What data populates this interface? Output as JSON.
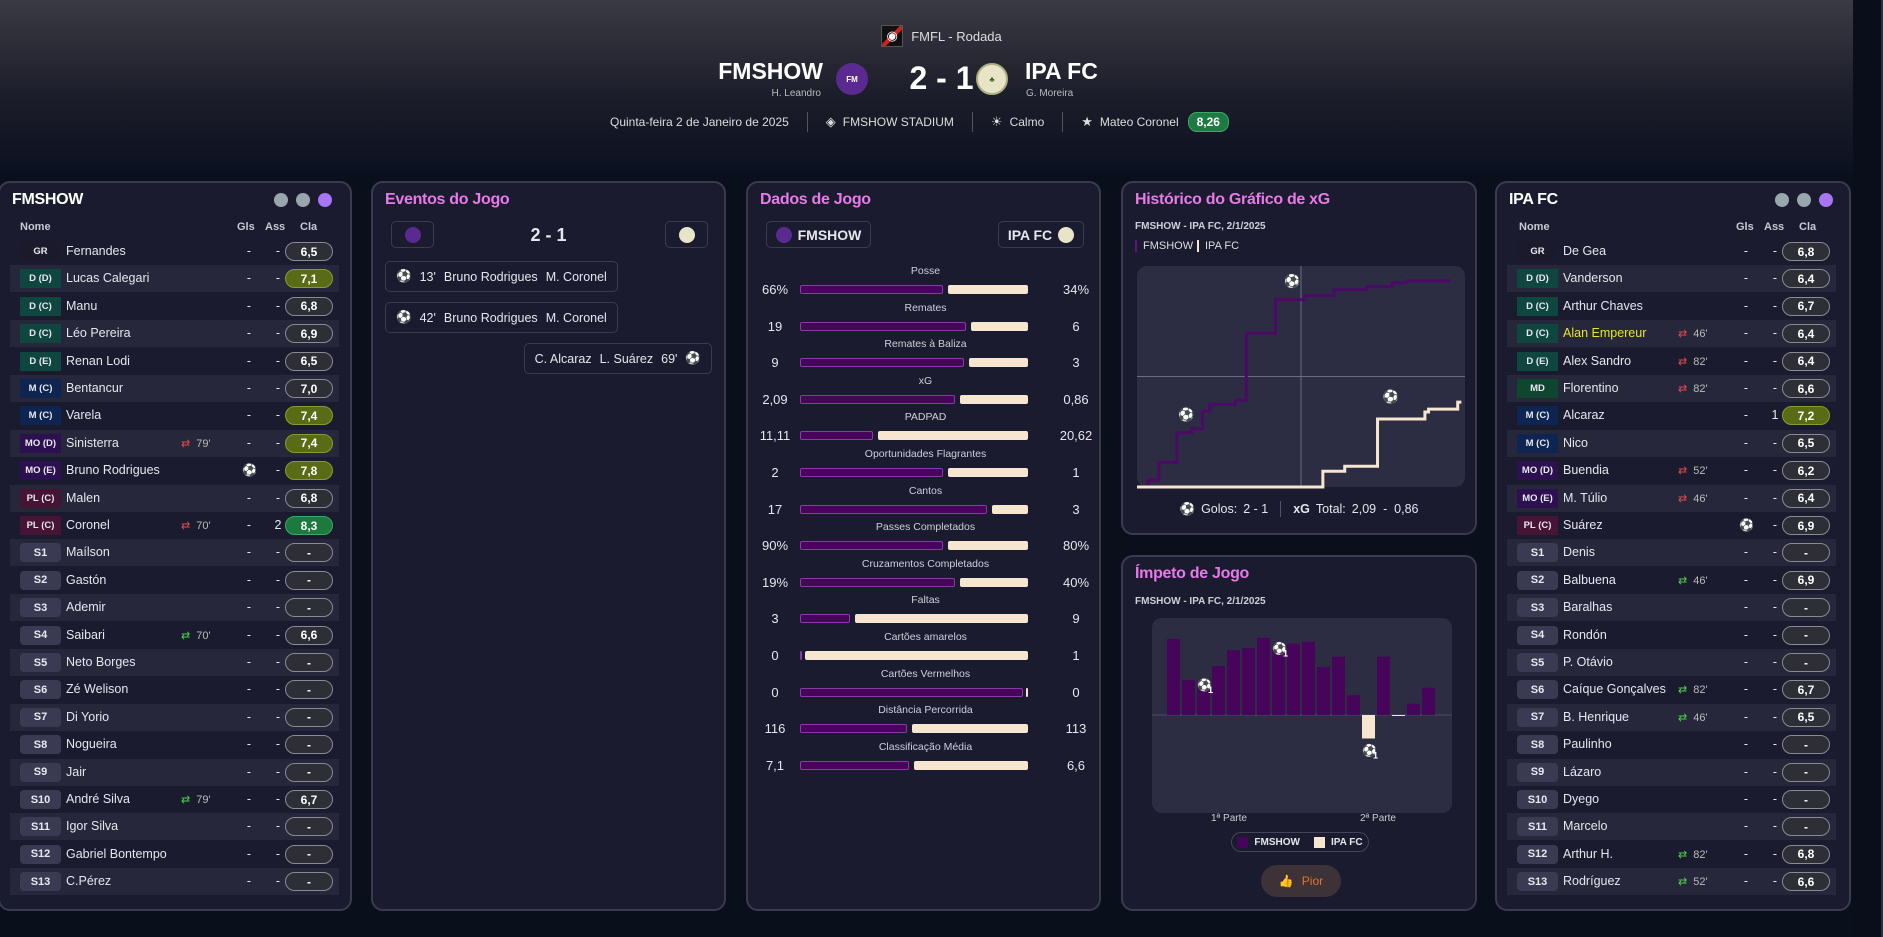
{
  "header": {
    "competition": "FMFL - Rodada",
    "home_team": "FMSHOW",
    "home_manager": "H. Leandro",
    "home_crest_text": "FM SHOW",
    "away_team": "IPA FC",
    "away_manager": "G. Moreira",
    "score": "2 - 1",
    "date": "Quinta-feira 2 de Janeiro de 2025",
    "stadium": "FMSHOW STADIUM",
    "weather": "Calmo",
    "player_of_match": "Mateo Coronel",
    "player_of_match_rating": "8,26"
  },
  "colors": {
    "home": "#46045a",
    "away": "#f7e6cf",
    "accent_title": "#e87ae8"
  },
  "home_lineup": {
    "title": "FMSHOW",
    "headers": {
      "name": "Nome",
      "gls": "Gls",
      "ass": "Ass",
      "cla": "Cla"
    },
    "players": [
      {
        "pos": "GR",
        "name": "Fernandes",
        "gls": "-",
        "ass": "-",
        "rating": "6,5",
        "tier": ""
      },
      {
        "pos": "D (D)",
        "name": "Lucas Calegari",
        "gls": "-",
        "ass": "-",
        "rating": "7,1",
        "tier": "good"
      },
      {
        "pos": "D (C)",
        "name": "Manu",
        "gls": "-",
        "ass": "-",
        "rating": "6,8",
        "tier": ""
      },
      {
        "pos": "D (C)",
        "name": "Léo Pereira",
        "gls": "-",
        "ass": "-",
        "rating": "6,9",
        "tier": ""
      },
      {
        "pos": "D (E)",
        "name": "Renan Lodi",
        "gls": "-",
        "ass": "-",
        "rating": "6,5",
        "tier": ""
      },
      {
        "pos": "M (C)",
        "name": "Bentancur",
        "gls": "-",
        "ass": "-",
        "rating": "7,0",
        "tier": ""
      },
      {
        "pos": "M (C)",
        "name": "Varela",
        "gls": "-",
        "ass": "-",
        "rating": "7,4",
        "tier": "good"
      },
      {
        "pos": "MO (D)",
        "name": "Sinisterra",
        "sub": "79'",
        "sub_dir": "off",
        "gls": "-",
        "ass": "-",
        "rating": "7,4",
        "tier": "good"
      },
      {
        "pos": "MO (E)",
        "name": "Bruno Rodrigues",
        "goals_icon": "2",
        "ass": "-",
        "rating": "7,8",
        "tier": "good"
      },
      {
        "pos": "PL (C)",
        "name": "Malen",
        "gls": "-",
        "ass": "-",
        "rating": "6,8",
        "tier": ""
      },
      {
        "pos": "PL (C)",
        "name": "Coronel",
        "sub": "70'",
        "sub_dir": "off",
        "gls": "-",
        "ass": "2",
        "rating": "8,3",
        "tier": "great"
      },
      {
        "pos": "S1",
        "name": "Maílson",
        "gls": "-",
        "ass": "-",
        "rating": "-",
        "tier": ""
      },
      {
        "pos": "S2",
        "name": "Gastón",
        "gls": "-",
        "ass": "-",
        "rating": "-",
        "tier": ""
      },
      {
        "pos": "S3",
        "name": "Ademir",
        "gls": "-",
        "ass": "-",
        "rating": "-",
        "tier": ""
      },
      {
        "pos": "S4",
        "name": "Saibari",
        "sub": "70'",
        "sub_dir": "on",
        "gls": "-",
        "ass": "-",
        "rating": "6,6",
        "tier": ""
      },
      {
        "pos": "S5",
        "name": "Neto Borges",
        "gls": "-",
        "ass": "-",
        "rating": "-",
        "tier": ""
      },
      {
        "pos": "S6",
        "name": "Zé Welison",
        "gls": "-",
        "ass": "-",
        "rating": "-",
        "tier": ""
      },
      {
        "pos": "S7",
        "name": "Di Yorio",
        "gls": "-",
        "ass": "-",
        "rating": "-",
        "tier": ""
      },
      {
        "pos": "S8",
        "name": "Nogueira",
        "gls": "-",
        "ass": "-",
        "rating": "-",
        "tier": ""
      },
      {
        "pos": "S9",
        "name": "Jair",
        "gls": "-",
        "ass": "-",
        "rating": "-",
        "tier": ""
      },
      {
        "pos": "S10",
        "name": "André Silva",
        "sub": "79'",
        "sub_dir": "on",
        "gls": "-",
        "ass": "-",
        "rating": "6,7",
        "tier": ""
      },
      {
        "pos": "S11",
        "name": "Igor Silva",
        "gls": "-",
        "ass": "-",
        "rating": "-",
        "tier": ""
      },
      {
        "pos": "S12",
        "name": "Gabriel Bontempo",
        "gls": "-",
        "ass": "-",
        "rating": "-",
        "tier": ""
      },
      {
        "pos": "S13",
        "name": "C.Pérez",
        "gls": "-",
        "ass": "-",
        "rating": "-",
        "tier": ""
      }
    ]
  },
  "away_lineup": {
    "title": "IPA FC",
    "headers": {
      "name": "Nome",
      "gls": "Gls",
      "ass": "Ass",
      "cla": "Cla"
    },
    "players": [
      {
        "pos": "GR",
        "name": "De Gea",
        "gls": "-",
        "ass": "-",
        "rating": "6,8",
        "tier": ""
      },
      {
        "pos": "D (D)",
        "name": "Vanderson",
        "gls": "-",
        "ass": "-",
        "rating": "6,4",
        "tier": ""
      },
      {
        "pos": "D (C)",
        "name": "Arthur Chaves",
        "gls": "-",
        "ass": "-",
        "rating": "6,7",
        "tier": ""
      },
      {
        "pos": "D (C)",
        "name": "Alan Empereur",
        "highlight": true,
        "sub": "46'",
        "sub_dir": "off",
        "gls": "-",
        "ass": "-",
        "rating": "6,4",
        "tier": ""
      },
      {
        "pos": "D (E)",
        "name": "Alex Sandro",
        "sub": "82'",
        "sub_dir": "off",
        "gls": "-",
        "ass": "-",
        "rating": "6,4",
        "tier": ""
      },
      {
        "pos": "MD",
        "name": "Florentino",
        "sub": "82'",
        "sub_dir": "off",
        "gls": "-",
        "ass": "-",
        "rating": "6,6",
        "tier": ""
      },
      {
        "pos": "M (C)",
        "name": "Alcaraz",
        "gls": "-",
        "ass": "1",
        "rating": "7,2",
        "tier": "good"
      },
      {
        "pos": "M (C)",
        "name": "Nico",
        "gls": "-",
        "ass": "-",
        "rating": "6,5",
        "tier": ""
      },
      {
        "pos": "MO (D)",
        "name": "Buendia",
        "sub": "52'",
        "sub_dir": "off",
        "gls": "-",
        "ass": "-",
        "rating": "6,2",
        "tier": ""
      },
      {
        "pos": "MO (E)",
        "name": "M. Túlio",
        "sub": "46'",
        "sub_dir": "off",
        "gls": "-",
        "ass": "-",
        "rating": "6,4",
        "tier": ""
      },
      {
        "pos": "PL (C)",
        "name": "Suárez",
        "goals_icon": "1",
        "ass": "-",
        "rating": "6,9",
        "tier": ""
      },
      {
        "pos": "S1",
        "name": "Denis",
        "gls": "-",
        "ass": "-",
        "rating": "-",
        "tier": ""
      },
      {
        "pos": "S2",
        "name": "Balbuena",
        "sub": "46'",
        "sub_dir": "on",
        "gls": "-",
        "ass": "-",
        "rating": "6,9",
        "tier": ""
      },
      {
        "pos": "S3",
        "name": "Baralhas",
        "gls": "-",
        "ass": "-",
        "rating": "-",
        "tier": ""
      },
      {
        "pos": "S4",
        "name": "Rondón",
        "gls": "-",
        "ass": "-",
        "rating": "-",
        "tier": ""
      },
      {
        "pos": "S5",
        "name": "P. Otávio",
        "gls": "-",
        "ass": "-",
        "rating": "-",
        "tier": ""
      },
      {
        "pos": "S6",
        "name": "Caíque Gonçalves",
        "sub": "82'",
        "sub_dir": "on",
        "gls": "-",
        "ass": "-",
        "rating": "6,7",
        "tier": ""
      },
      {
        "pos": "S7",
        "name": "B. Henrique",
        "sub": "46'",
        "sub_dir": "on",
        "gls": "-",
        "ass": "-",
        "rating": "6,5",
        "tier": ""
      },
      {
        "pos": "S8",
        "name": "Paulinho",
        "gls": "-",
        "ass": "-",
        "rating": "-",
        "tier": ""
      },
      {
        "pos": "S9",
        "name": "Lázaro",
        "gls": "-",
        "ass": "-",
        "rating": "-",
        "tier": ""
      },
      {
        "pos": "S10",
        "name": "Dyego",
        "gls": "-",
        "ass": "-",
        "rating": "-",
        "tier": ""
      },
      {
        "pos": "S11",
        "name": "Marcelo",
        "gls": "-",
        "ass": "-",
        "rating": "-",
        "tier": ""
      },
      {
        "pos": "S12",
        "name": "Arthur H.",
        "sub": "82'",
        "sub_dir": "on",
        "gls": "-",
        "ass": "-",
        "rating": "6,8",
        "tier": ""
      },
      {
        "pos": "S13",
        "name": "Rodríguez",
        "sub": "52'",
        "sub_dir": "on",
        "gls": "-",
        "ass": "-",
        "rating": "6,6",
        "tier": ""
      }
    ]
  },
  "events": {
    "title": "Eventos do Jogo",
    "score": "2 - 1",
    "items": [
      {
        "side": "home",
        "minute": "13'",
        "scorer": "Bruno Rodrigues",
        "assist": "M. Coronel"
      },
      {
        "side": "home",
        "minute": "42'",
        "scorer": "Bruno Rodrigues",
        "assist": "M. Coronel"
      },
      {
        "side": "away",
        "minute": "69'",
        "scorer": "C. Alcaraz",
        "assist": "L. Suárez"
      }
    ]
  },
  "match_stats": {
    "title": "Dados de Jogo",
    "home_label": "FMSHOW",
    "away_label": "IPA FC",
    "rows": [
      {
        "label": "Posse",
        "home": "66%",
        "away": "34%",
        "home_share": 0.64
      },
      {
        "label": "Remates",
        "home": "19",
        "away": "6",
        "home_share": 0.74
      },
      {
        "label": "Remates à Baliza",
        "home": "9",
        "away": "3",
        "home_share": 0.73
      },
      {
        "label": "xG",
        "home": "2,09",
        "away": "0,86",
        "home_share": 0.69
      },
      {
        "label": "PADPAD",
        "home": "11,11",
        "away": "20,62",
        "home_share": 0.33
      },
      {
        "label": "Oportunidades Flagrantes",
        "home": "2",
        "away": "1",
        "home_share": 0.64
      },
      {
        "label": "Cantos",
        "home": "17",
        "away": "3",
        "home_share": 0.83
      },
      {
        "label": "Passes Completados",
        "home": "90%",
        "away": "80%",
        "home_share": 0.64
      },
      {
        "label": "Cruzamentos Completados",
        "home": "19%",
        "away": "40%",
        "home_share": 0.69
      },
      {
        "label": "Faltas",
        "home": "3",
        "away": "9",
        "home_share": 0.23
      },
      {
        "label": "Cartões amarelos",
        "home": "0",
        "away": "1",
        "home_share": 0.01
      },
      {
        "label": "Cartões Vermelhos",
        "home": "0",
        "away": "0",
        "home_share": 0.99
      },
      {
        "label": "Distância Percorrida",
        "home": "116",
        "away": "113",
        "home_share": 0.48
      },
      {
        "label": "Classificação Média",
        "home": "7,1",
        "away": "6,6",
        "home_share": 0.49
      }
    ]
  },
  "chart_data": [
    {
      "type": "line",
      "title": "Histórico do Gráfico de xG",
      "subtitle": "FMSHOW - IPA FC, 2/1/2025",
      "legend": [
        "FMSHOW",
        "IPA FC"
      ],
      "xlim": [
        0,
        90
      ],
      "ylim": [
        0,
        2.2
      ],
      "series": [
        {
          "name": "FMSHOW",
          "steps": [
            [
              0,
              0
            ],
            [
              3,
              0.07
            ],
            [
              6,
              0.25
            ],
            [
              11,
              0.55
            ],
            [
              15,
              0.59
            ],
            [
              18,
              0.77
            ],
            [
              20,
              0.84
            ],
            [
              27,
              0.88
            ],
            [
              30,
              1.56
            ],
            [
              38,
              1.9
            ],
            [
              46,
              1.94
            ],
            [
              54,
              2.0
            ],
            [
              63,
              2.03
            ],
            [
              70,
              2.07
            ],
            [
              74,
              2.09
            ],
            [
              86,
              2.09
            ]
          ],
          "goals": [
            13,
            42
          ]
        },
        {
          "name": "IPA FC",
          "steps": [
            [
              0,
              0
            ],
            [
              51,
              0.16
            ],
            [
              57,
              0.21
            ],
            [
              66,
              0.69
            ],
            [
              79,
              0.76
            ],
            [
              80,
              0.79
            ],
            [
              88,
              0.86
            ]
          ],
          "goals": [
            69
          ]
        }
      ],
      "footer": {
        "goals_label": "Golos:",
        "goals": "2 - 1",
        "xg_label": "xG",
        "total_label": "Total:",
        "xg_total": "2,09  -  0,86"
      }
    },
    {
      "type": "bar",
      "title": "Ímpeto de Jogo",
      "subtitle": "FMSHOW - IPA FC, 2/1/2025",
      "categories_labels": [
        "1ª Parte",
        "2ª Parte"
      ],
      "values": [
        81,
        37,
        32,
        52,
        69,
        71,
        82,
        71,
        76,
        78,
        51,
        62,
        21,
        -25,
        62,
        -1,
        12,
        29
      ],
      "goal_markers": [
        {
          "index": 2,
          "count": "1",
          "side": "home"
        },
        {
          "index": 7,
          "count": "1",
          "side": "home"
        },
        {
          "index": 13,
          "count": "1",
          "side": "away"
        }
      ],
      "ylim": [
        -100,
        100
      ],
      "legend": [
        "FMSHOW",
        "IPA FC"
      ],
      "button": "Pior"
    }
  ]
}
